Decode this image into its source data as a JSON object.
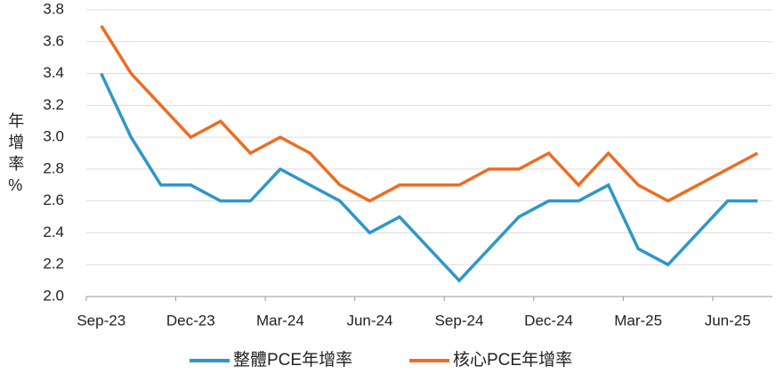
{
  "chart_data": {
    "type": "line",
    "ylabel": "年增率%",
    "categories": [
      "Sep-23",
      null,
      null,
      "Dec-23",
      null,
      null,
      "Mar-24",
      null,
      null,
      "Jun-24",
      null,
      null,
      "Sep-24",
      null,
      null,
      "Dec-24",
      null,
      null,
      "Mar-25",
      null,
      null,
      "Jun-25",
      null
    ],
    "series": [
      {
        "name": "整體PCE年增率",
        "color": "#2e97c9",
        "values": [
          3.4,
          3.0,
          2.7,
          2.7,
          2.6,
          2.6,
          2.8,
          2.7,
          2.6,
          2.4,
          2.5,
          2.3,
          2.1,
          2.3,
          2.5,
          2.6,
          2.6,
          2.7,
          2.3,
          2.2,
          2.4,
          2.6,
          2.6
        ]
      },
      {
        "name": "核心PCE年增率",
        "color": "#ec6d22",
        "values": [
          3.7,
          3.4,
          3.2,
          3.0,
          3.1,
          2.9,
          3.0,
          2.9,
          2.7,
          2.6,
          2.7,
          2.7,
          2.7,
          2.8,
          2.8,
          2.9,
          2.7,
          2.9,
          2.7,
          2.6,
          2.7,
          2.8,
          2.9
        ]
      }
    ],
    "ylim": [
      2.0,
      3.8
    ],
    "yticks": [
      {
        "value": 2.0,
        "label": "2.0"
      },
      {
        "value": 2.2,
        "label": "2.2"
      },
      {
        "value": 2.4,
        "label": "2.4"
      },
      {
        "value": 2.6,
        "label": "2.6"
      },
      {
        "value": 2.8,
        "label": "2.8"
      },
      {
        "value": 3.0,
        "label": "3.0"
      },
      {
        "value": 3.2,
        "label": "3.2"
      },
      {
        "value": 3.4,
        "label": "3.4"
      },
      {
        "value": 3.6,
        "label": "3.6"
      },
      {
        "value": 3.8,
        "label": "3.8"
      }
    ],
    "grid": true,
    "legend": "bottom"
  }
}
